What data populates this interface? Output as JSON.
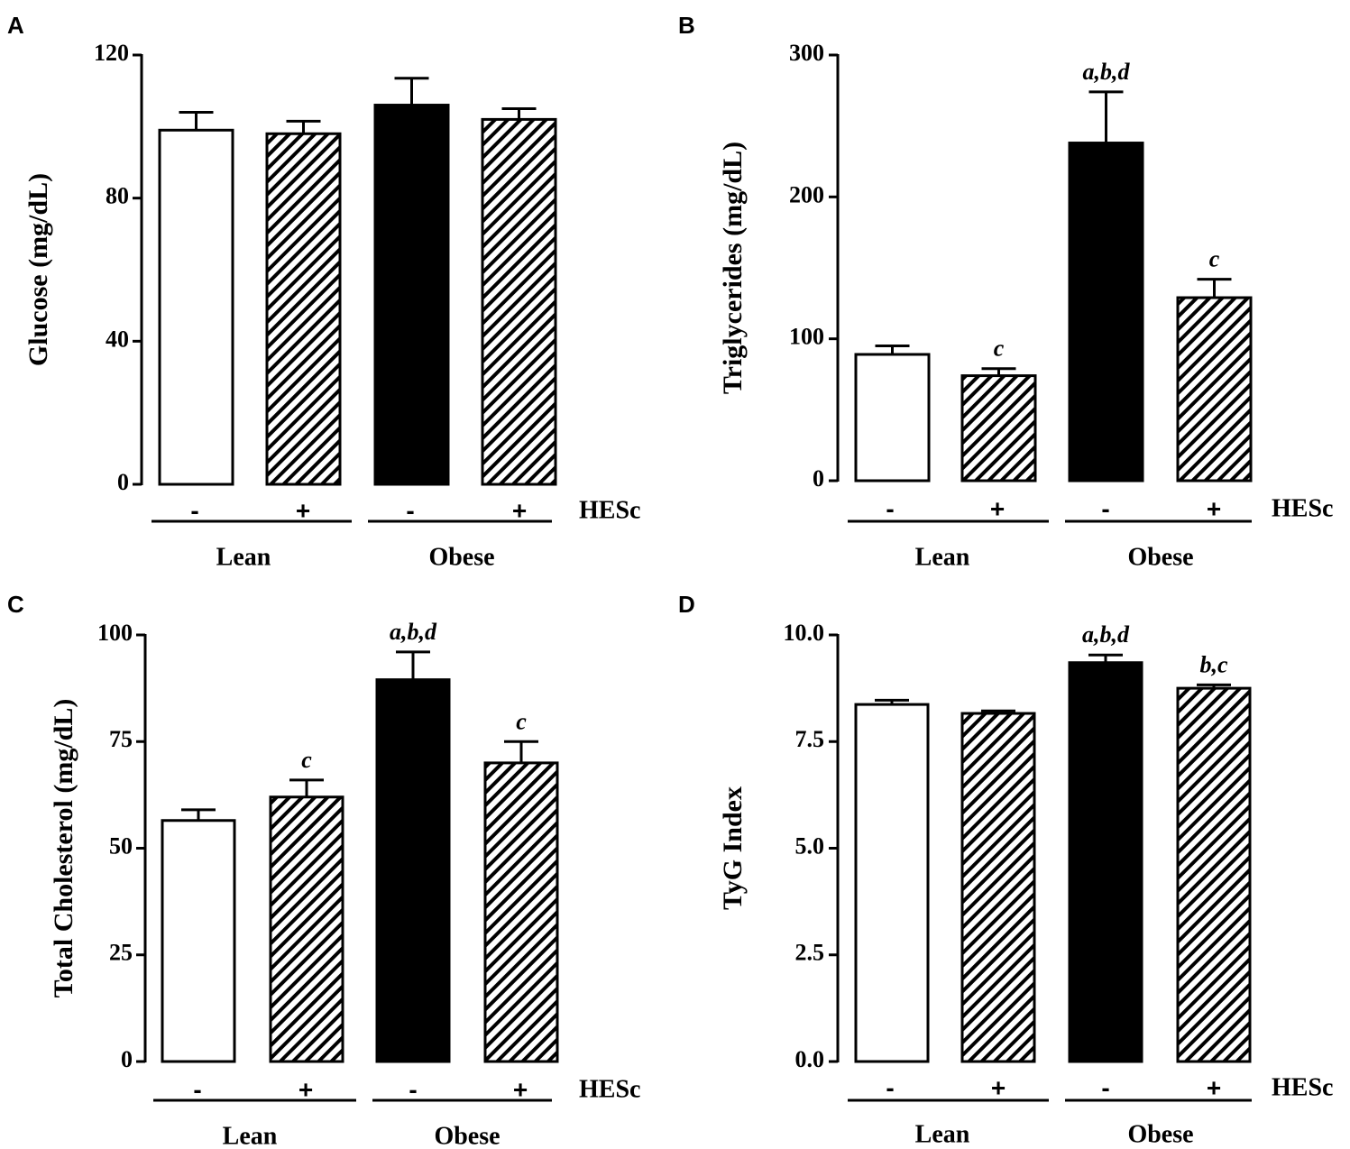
{
  "chart_data": [
    {
      "type": "bar",
      "panel_label": "A",
      "ylabel": "Glucose (mg/dL)",
      "ylim": [
        0,
        120
      ],
      "yticks": [
        "0",
        "40",
        "80",
        "120"
      ],
      "categories": [
        "-",
        "+",
        "-",
        "+"
      ],
      "treatment_label": "HESc",
      "groups": [
        "Lean",
        "Obese"
      ],
      "values": [
        99,
        98,
        106,
        102
      ],
      "errors": [
        5,
        3.5,
        7.5,
        3
      ],
      "fills": [
        "white",
        "hatch",
        "black",
        "hatch"
      ],
      "annotations": [
        "",
        "",
        "",
        ""
      ]
    },
    {
      "type": "bar",
      "panel_label": "B",
      "ylabel": "Triglycerides (mg/dL)",
      "ylim": [
        0,
        300
      ],
      "yticks": [
        "0",
        "100",
        "200",
        "300"
      ],
      "categories": [
        "-",
        "+",
        "-",
        "+"
      ],
      "treatment_label": "HESc",
      "groups": [
        "Lean",
        "Obese"
      ],
      "values": [
        89,
        74,
        238,
        129
      ],
      "errors": [
        6,
        5,
        36,
        13
      ],
      "fills": [
        "white",
        "hatch",
        "black",
        "hatch"
      ],
      "annotations": [
        "",
        "c",
        "a,b,d",
        "c"
      ]
    },
    {
      "type": "bar",
      "panel_label": "C",
      "ylabel": "Total Cholesterol (mg/dL)",
      "ylim": [
        0,
        100
      ],
      "yticks": [
        "0",
        "25",
        "50",
        "75",
        "100"
      ],
      "categories": [
        "-",
        "+",
        "-",
        "+"
      ],
      "treatment_label": "HESc",
      "groups": [
        "Lean",
        "Obese"
      ],
      "values": [
        56.5,
        62,
        89.5,
        70
      ],
      "errors": [
        2.5,
        4,
        6.5,
        5
      ],
      "fills": [
        "white",
        "hatch",
        "black",
        "hatch"
      ],
      "annotations": [
        "",
        "c",
        "a,b,d",
        "c"
      ]
    },
    {
      "type": "bar",
      "panel_label": "D",
      "ylabel": "TyG Index",
      "ylim": [
        0,
        10
      ],
      "yticks": [
        "0.0",
        "2.5",
        "5.0",
        "7.5",
        "10.0"
      ],
      "categories": [
        "-",
        "+",
        "-",
        "+"
      ],
      "treatment_label": "HESc",
      "groups": [
        "Lean",
        "Obese"
      ],
      "values": [
        8.37,
        8.16,
        9.35,
        8.75
      ],
      "errors": [
        0.1,
        0.06,
        0.18,
        0.08
      ],
      "fills": [
        "white",
        "hatch",
        "black",
        "hatch"
      ],
      "annotations": [
        "",
        "",
        "a,b,d",
        "b,c"
      ]
    }
  ]
}
